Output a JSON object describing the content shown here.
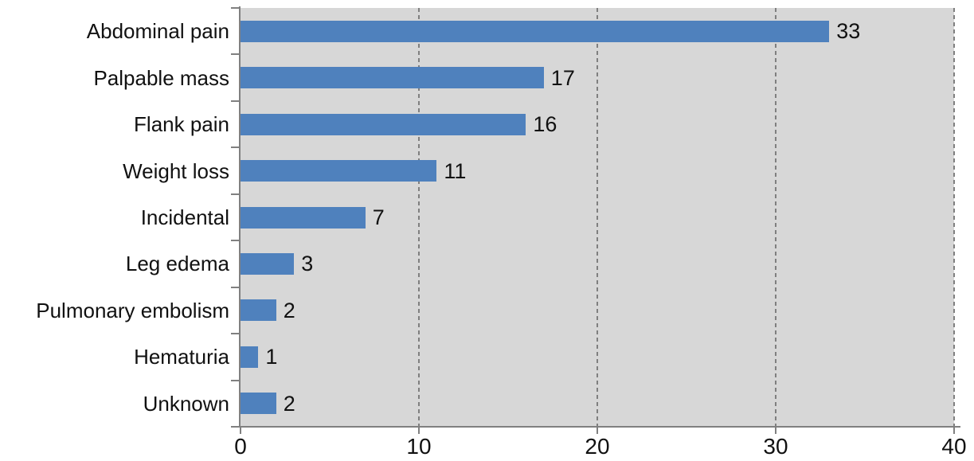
{
  "chart_data": {
    "type": "bar",
    "orientation": "horizontal",
    "title": "",
    "xlabel": "",
    "ylabel": "",
    "categories": [
      "Abdominal pain",
      "Palpable mass",
      "Flank pain",
      "Weight loss",
      "Incidental",
      "Leg edema",
      "Pulmonary embolism",
      "Hematuria",
      "Unknown"
    ],
    "values": [
      33,
      17,
      16,
      11,
      7,
      3,
      2,
      1,
      2
    ],
    "data_labels": [
      33,
      17,
      16,
      11,
      7,
      3,
      2,
      1,
      2
    ],
    "xlim": [
      0,
      40
    ],
    "x_ticks": [
      0,
      10,
      20,
      30,
      40
    ],
    "gridlines_at": [
      10,
      20,
      30,
      40
    ],
    "grid_style": "vertical-dashed",
    "legend": "none",
    "colors": {
      "bar": "#4f81bd",
      "plot_background": "#d7d7d7",
      "page_background": "#ffffff",
      "axis_line": "#808080",
      "gridline": "#7f7f7f",
      "text": "#111111"
    }
  }
}
